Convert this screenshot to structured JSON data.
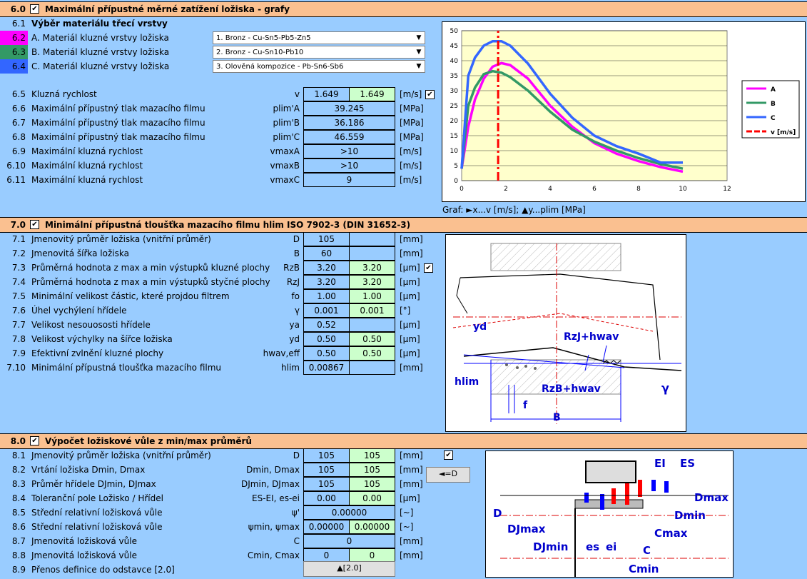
{
  "s6": {
    "num": "6.0",
    "title": "Maximální přípustné měrné zatížení ložiska - grafy",
    "sub_num": "6.1",
    "sub_title": "Výběr materiálu třecí vrstvy",
    "materials": [
      {
        "num": "6.2",
        "label": "A. Materiál kluzné vrstvy ložiska",
        "value": "1. Bronz - Cu-Sn5-Pb5-Zn5",
        "color": "#ff00ff"
      },
      {
        "num": "6.3",
        "label": "B. Materiál kluzné vrstvy ložiska",
        "value": "2. Bronz - Cu-Sn10-Pb10",
        "color": "#339966"
      },
      {
        "num": "6.4",
        "label": "C. Materiál kluzné vrstvy ložiska",
        "value": "3. Olověná kompozice - Pb-Sn6-Sb6",
        "color": "#3366ff"
      }
    ],
    "rows": [
      {
        "num": "6.5",
        "label": "Kluzná rychlost",
        "sym": "v",
        "v1": "1.649",
        "v2": "1.649",
        "unit": "[m/s]"
      },
      {
        "num": "6.6",
        "label": "Maximální přípustný tlak mazacího filmu",
        "sym": "plim'A",
        "v": "39.245",
        "unit": "[MPa]"
      },
      {
        "num": "6.7",
        "label": "Maximální přípustný tlak mazacího filmu",
        "sym": "plim'B",
        "v": "36.186",
        "unit": "[MPa]"
      },
      {
        "num": "6.8",
        "label": "Maximální přípustný tlak mazacího filmu",
        "sym": "plim'C",
        "v": "46.559",
        "unit": "[MPa]"
      },
      {
        "num": "6.9",
        "label": "Maximální kluzná rychlost",
        "sym": "vmaxA",
        "v": ">10",
        "unit": "[m/s]"
      },
      {
        "num": "6.10",
        "label": "Maximální kluzná rychlost",
        "sym": "vmaxB",
        "v": ">10",
        "unit": "[m/s]"
      },
      {
        "num": "6.11",
        "label": "Maximální kluzná rychlost",
        "sym": "vmaxC",
        "v": "9",
        "unit": "[m/s]"
      }
    ],
    "graph_caption": "Graf:  ►x...v [m/s];     ▲y...plim [MPa]"
  },
  "chart_data": {
    "type": "line",
    "xlim": [
      0,
      12
    ],
    "ylim": [
      0,
      50
    ],
    "xticks": [
      "0",
      "2",
      "4",
      "6",
      "8",
      "10",
      "12"
    ],
    "yticks": [
      "0",
      "5",
      "10",
      "15",
      "20",
      "25",
      "30",
      "35",
      "40",
      "45",
      "50"
    ],
    "legend_position": "right",
    "grid": true,
    "series": [
      {
        "name": "A",
        "color": "#ff00ff",
        "x": [
          0,
          0.3,
          0.6,
          1.0,
          1.4,
          1.8,
          2.2,
          3,
          4,
          5,
          6,
          7,
          8,
          9,
          10
        ],
        "y": [
          4,
          18,
          27,
          34,
          38,
          39.2,
          38.5,
          34,
          25,
          18,
          12.5,
          9,
          6.5,
          4.5,
          3
        ]
      },
      {
        "name": "B",
        "color": "#339966",
        "x": [
          0,
          0.3,
          0.6,
          1.0,
          1.4,
          1.8,
          2.2,
          3,
          4,
          5,
          6,
          7,
          8,
          9,
          10
        ],
        "y": [
          4,
          25,
          31,
          35.5,
          36.5,
          36,
          34.5,
          30,
          23,
          17,
          13,
          10,
          7.5,
          5.5,
          4
        ]
      },
      {
        "name": "C",
        "color": "#3366ff",
        "x": [
          0,
          0.3,
          0.6,
          1.0,
          1.4,
          1.8,
          2.2,
          3,
          4,
          5,
          6,
          7,
          8,
          9,
          10
        ],
        "y": [
          4,
          35,
          41,
          45,
          46.5,
          46.5,
          45,
          39,
          29,
          21,
          15,
          11.5,
          9,
          6,
          6
        ]
      },
      {
        "name": "v [m/s]",
        "color": "#ff0000",
        "dashed": true,
        "x": [
          1.649,
          1.649
        ],
        "y": [
          0,
          50
        ]
      }
    ]
  },
  "s7": {
    "num": "7.0",
    "title": "Minimální přípustná tloušťka mazacího filmu hlim ISO 7902-3 (DIN 31652-3)",
    "rows": [
      {
        "num": "7.1",
        "label": "Jmenovitý průměr ložiska (vnitřní průměr)",
        "sym": "D",
        "v1": "105",
        "unit": "[mm]"
      },
      {
        "num": "7.2",
        "label": "Jmenovitá šířka ložiska",
        "sym": "B",
        "v1": "60",
        "unit": "[mm]"
      },
      {
        "num": "7.3",
        "label": "Průměrná hodnota z max a min výstupků kluzné plochy",
        "sym": "RzB",
        "v1": "3.20",
        "v2": "3.20",
        "unit": "[µm]"
      },
      {
        "num": "7.4",
        "label": "Průměrná hodnota z max a min výstupků styčné plochy",
        "sym": "RzJ",
        "v1": "3.20",
        "v2": "3.20",
        "unit": "[µm]"
      },
      {
        "num": "7.5",
        "label": "Minimální velikost částic, které projdou filtrem",
        "sym": "fo",
        "v1": "1.00",
        "v2": "1.00",
        "unit": "[µm]"
      },
      {
        "num": "7.6",
        "label": "Úhel vychýlení hřídele",
        "sym": "γ",
        "v1": "0.001",
        "v2": "0.001",
        "unit": "[°]"
      },
      {
        "num": "7.7",
        "label": "Velikost nesouososti hřídele",
        "sym": "ya",
        "v1": "0.52",
        "unit": "[µm]"
      },
      {
        "num": "7.8",
        "label": "Velikost výchylky na šířce ložiska",
        "sym": "yd",
        "v1": "0.50",
        "v2": "0.50",
        "unit": "[µm]"
      },
      {
        "num": "7.9",
        "label": "Efektivní zvlnění kluzné plochy",
        "sym": "hwav,eff",
        "v1": "0.50",
        "v2": "0.50",
        "unit": "[µm]"
      },
      {
        "num": "7.10",
        "label": "Minimální přípustná tloušťka mazacího filmu",
        "sym": "hlim",
        "v1": "0.00867",
        "unit": "[mm]"
      }
    ],
    "diagram": {
      "yd": "yd",
      "rzj": "RzJ+hwav",
      "hlim": "hlim",
      "rzb": "RzB+hwav",
      "f": "f",
      "b": "B",
      "gamma": "γ"
    }
  },
  "s8": {
    "num": "8.0",
    "title": "Výpočet ložiskové vůle z min/max průměrů",
    "rows": [
      {
        "num": "8.1",
        "label": "Jmenovitý průměr ložiska (vnitřní průměr)",
        "sym": "D",
        "v1": "105",
        "v2": "105",
        "unit": "[mm]"
      },
      {
        "num": "8.2",
        "label": "Vrtání ložiska Dmin, Dmax",
        "sym": "Dmin, Dmax",
        "v1": "105",
        "v2": "105",
        "unit": "[mm]"
      },
      {
        "num": "8.3",
        "label": "Průměr hřídele DJmin, DJmax",
        "sym": "DJmin, DJmax",
        "v1": "105",
        "v2": "105",
        "unit": "[mm]"
      },
      {
        "num": "8.4",
        "label": "Toleranční pole Ložisko / Hřídel",
        "sym": "ES-EI, es-ei",
        "v1": "0.00",
        "v2": "0.00",
        "unit": "[µm]"
      },
      {
        "num": "8.5",
        "label": "Střední relativní ložisková vůle",
        "sym": "ψ'",
        "v": "0.00000",
        "unit": "[~]"
      },
      {
        "num": "8.6",
        "label": "Střední relativní ložisková vůle",
        "sym": "ψmin, ψmax",
        "v1": "0.00000",
        "v2": "0.00000",
        "unit": "[~]"
      },
      {
        "num": "8.7",
        "label": "Jmenovitá ložisková vůle",
        "sym": "C",
        "v": "0",
        "unit": "[mm]"
      },
      {
        "num": "8.8",
        "label": "Jmenovitá ložisková vůle",
        "sym": "Cmin, Cmax",
        "v1": "0",
        "v2": "0",
        "unit": "[mm]"
      },
      {
        "num": "8.9",
        "label": "Přenos definice do odstavce [2.0]"
      }
    ],
    "button_d": "◄=D",
    "button_transfer": "▲[2.0]",
    "diagram": {
      "ei_up": "EI",
      "es": "ES",
      "dmax": "Dmax",
      "d": "D",
      "dmin": "Dmin",
      "djmax": "DJmax",
      "cmax": "Cmax",
      "djmin": "DJmin",
      "es_low": "es",
      "ei_low": "ei",
      "c": "C",
      "cmin": "Cmin"
    }
  },
  "check": "✔"
}
